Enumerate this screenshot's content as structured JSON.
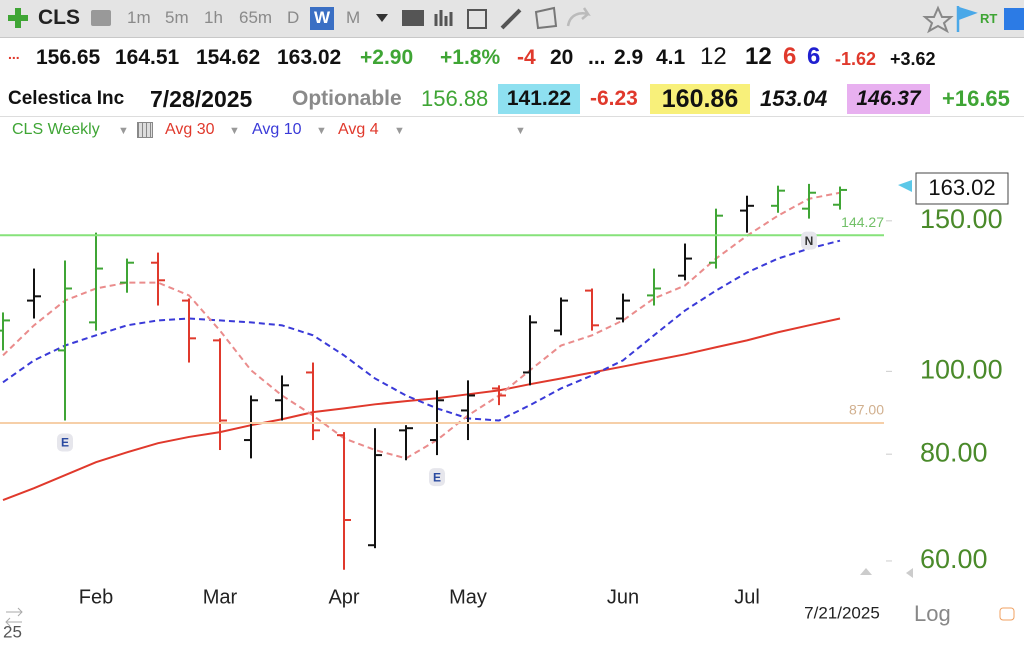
{
  "toolbar": {
    "symbol": "CLS",
    "intervals": [
      "1m",
      "5m",
      "1h",
      "65m",
      "D",
      "W",
      "M"
    ],
    "rt": "RT"
  },
  "quote": {
    "row1": [
      "...",
      "156.65",
      "164.51",
      "154.62",
      "163.02",
      "+2.90",
      "+1.8%",
      "-4",
      "20",
      "...",
      "2.9",
      "4.1",
      "12",
      "12",
      "6",
      "6",
      "-1.62",
      "+3.62"
    ],
    "row2": [
      "Celestica Inc",
      "7/28/2025",
      "Optionable",
      "156.88",
      "141.22",
      "-6.23",
      "160.86",
      "153.04",
      "146.37",
      "+16.65"
    ]
  },
  "chart_data": {
    "type": "ohlc",
    "log_scale": true,
    "grid": false,
    "categories": [
      null,
      null,
      null,
      "Feb",
      null,
      null,
      null,
      "Mar",
      null,
      null,
      null,
      "Apr",
      null,
      null,
      null,
      "May",
      null,
      null,
      null,
      null,
      "Jun",
      null,
      null,
      null,
      "Jul",
      null,
      null,
      null
    ],
    "events": [
      null,
      null,
      "E",
      null,
      null,
      null,
      null,
      null,
      null,
      null,
      null,
      null,
      null,
      null,
      "E",
      null,
      null,
      null,
      null,
      null,
      null,
      null,
      null,
      null,
      null,
      null,
      "N",
      null
    ],
    "series": [
      {
        "name": "CLS Weekly",
        "type": "ohlc",
        "open": [
          111.6,
          121.0,
          105.8,
          114.1,
          127.0,
          134.0,
          121.0,
          108.7,
          83.1,
          92.5,
          99.7,
          84.2,
          62.6,
          85.3,
          83.1,
          90.0,
          95.5,
          99.7,
          111.6,
          124.3,
          115.3,
          122.7,
          129.4,
          134.0,
          154.2,
          156.2,
          155.0,
          156.65
        ],
        "high": [
          117.2,
          131.9,
          134.8,
          145.3,
          135.5,
          137.7,
          121.7,
          109.3,
          93.7,
          98.9,
          102.4,
          84.9,
          85.8,
          86.5,
          95.0,
          97.6,
          96.3,
          116.3,
          122.0,
          125.0,
          123.3,
          131.9,
          141.1,
          155.0,
          160.5,
          164.9,
          165.7,
          164.51
        ],
        "low": [
          105.8,
          115.3,
          87.6,
          111.6,
          123.6,
          119.4,
          102.4,
          80.9,
          79.1,
          87.6,
          83.1,
          58.6,
          62.1,
          78.7,
          79.8,
          83.1,
          91.3,
          96.3,
          110.2,
          111.6,
          114.1,
          119.4,
          127.8,
          131.9,
          145.3,
          153.3,
          150.9,
          154.62
        ],
        "close": [
          114.7,
          122.4,
          125.0,
          131.9,
          134.0,
          127.8,
          109.3,
          87.6,
          92.5,
          96.3,
          85.3,
          67.0,
          79.8,
          85.8,
          92.5,
          93.7,
          93.7,
          114.1,
          121.0,
          113.2,
          121.0,
          125.0,
          135.5,
          152.1,
          156.2,
          162.7,
          161.8,
          163.02
        ],
        "colors": [
          "#3fa535",
          "#111111",
          "#3fa535",
          "#3fa535",
          "#3fa535",
          "#e0392c",
          "#e0392c",
          "#e0392c",
          "#111111",
          "#111111",
          "#e0392c",
          "#e0392c",
          "#111111",
          "#111111",
          "#111111",
          "#111111",
          "#e0392c",
          "#111111",
          "#111111",
          "#e0392c",
          "#111111",
          "#3fa535",
          "#111111",
          "#3fa535",
          "#111111",
          "#3fa535",
          "#3fa535",
          "#3fa535"
        ],
        "color": "#3fa535"
      },
      {
        "name": "Avg 30",
        "type": "line",
        "dashed": false,
        "color": "#e0392c",
        "values": [
          70.7,
          73.0,
          75.6,
          78.3,
          80.4,
          82.4,
          83.8,
          84.9,
          86.5,
          87.9,
          89.6,
          90.5,
          91.5,
          92.3,
          93.0,
          94.0,
          95.0,
          96.6,
          98.1,
          99.7,
          101.3,
          103.0,
          104.7,
          106.7,
          108.7,
          111.1,
          113.2,
          115.3
        ]
      },
      {
        "name": "Avg 10",
        "type": "line",
        "dashed": true,
        "color": "#3a3ad8",
        "values": [
          97.1,
          103.0,
          107.2,
          110.2,
          113.2,
          114.7,
          115.3,
          114.7,
          114.1,
          113.2,
          110.2,
          104.4,
          98.1,
          93.7,
          90.5,
          88.1,
          87.6,
          91.3,
          95.5,
          98.9,
          103.0,
          110.2,
          117.8,
          124.3,
          130.5,
          135.5,
          139.2,
          142.2
        ]
      },
      {
        "name": "Avg 4",
        "type": "line",
        "dashed": true,
        "color": "#ea8c8c",
        "values": [
          104.4,
          113.2,
          121.0,
          125.0,
          127.0,
          127.0,
          122.7,
          111.6,
          100.3,
          93.7,
          88.8,
          83.5,
          80.9,
          79.1,
          83.1,
          88.8,
          93.7,
          100.3,
          107.2,
          110.2,
          114.7,
          121.7,
          126.0,
          135.5,
          144.1,
          152.1,
          159.2,
          161.8
        ]
      }
    ],
    "levels": [
      {
        "value": 144.27,
        "color": "#86e27a"
      },
      {
        "value": {
          "value": 87,
          "label": "87.00"
        },
        "color": "#f6cfa8"
      }
    ],
    "ylim": [
      57,
      184
    ],
    "yticks": [
      {
        "value": 150,
        "label": "150.00"
      },
      {
        "value": 100,
        "label": "100.00"
      },
      {
        "value": 80,
        "label": "80.00"
      },
      {
        "value": 60,
        "label": "60.00"
      }
    ],
    "date_label": "7/21/2025",
    "scale_label": "Log",
    "corner_label": "25"
  }
}
